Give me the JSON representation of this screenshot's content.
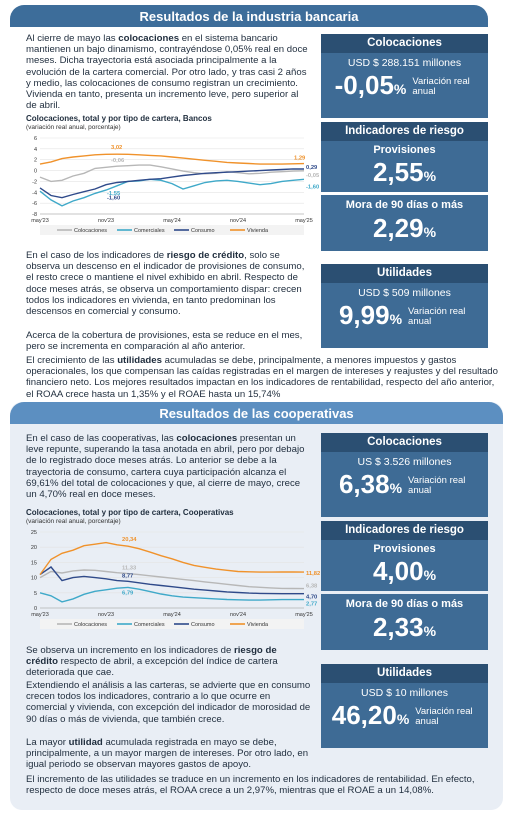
{
  "bank": {
    "header": "Resultados de la industria bancaria",
    "intro": [
      {
        "t": "Al cierre de mayo las ",
        "b": false
      },
      {
        "t": "colocaciones",
        "b": true
      },
      {
        "t": " en el sistema bancario mantienen un bajo dinamismo, contrayéndose 0,05% real en doce meses. Dicha trayectoria está asociada principalmente a la evolución de la cartera comercial. Por otro lado, y tras casi 2 años y medio, las colocaciones de consumo registran un crecimiento. Vivienda en tanto, presenta un incremento leve, pero superior al de abril.",
        "b": false
      }
    ],
    "chart_title": "Colocaciones, total y por tipo de cartera, Bancos",
    "chart_sub": "(variación real anual, porcentaje)",
    "risk_p1": [
      {
        "t": "En el caso de los indicadores de ",
        "b": false
      },
      {
        "t": "riesgo de crédito",
        "b": true
      },
      {
        "t": ", solo se observa un descenso en el indicador de provisiones de consumo, el resto crece o mantiene el nivel exhibido en abril. Respecto de doce meses atrás, se observa un comportamiento dispar: crecen todos los indicadores en vivienda, en tanto predominan los descensos en comercial y consumo.",
        "b": false
      }
    ],
    "risk_p2": "Acerca de la cobertura de provisiones, esta se reduce en el mes, pero se incrementa en comparación al año anterior.",
    "util_p": [
      {
        "t": "El crecimiento de las ",
        "b": false
      },
      {
        "t": "utilidades",
        "b": true
      },
      {
        "t": " acumuladas se debe, principalmente, a menores impuestos y gastos operacionales, los que compensan las caídas registradas en el margen de intereses y reajustes y del resultado financiero neto. Los mejores resultados impactan en los indicadores de rentabilidad, respecto del año anterior, el ROAA crece hasta un 1,35% y el ROAE hasta un 15,74%",
        "b": false
      }
    ],
    "cards": {
      "coloc": {
        "title": "Colocaciones",
        "amount": "USD $ 288.151 millones",
        "value": "-0,05",
        "unit": "%",
        "label": "Variación real anual"
      },
      "riesgo": {
        "title": "Indicadores de riesgo",
        "sub": "Provisiones",
        "value": "2,55",
        "unit": "%"
      },
      "mora": {
        "sub": "Mora de 90 días o más",
        "value": "2,29",
        "unit": "%"
      },
      "util": {
        "title": "Utilidades",
        "amount": "USD $ 509 millones",
        "value": "9,99",
        "unit": "%",
        "label": "Variación real anual"
      }
    }
  },
  "coop": {
    "header": "Resultados de las cooperativas",
    "intro": [
      {
        "t": "En el caso de las cooperativas, las ",
        "b": false
      },
      {
        "t": "colocaciones",
        "b": true
      },
      {
        "t": " presentan un leve repunte, superando la tasa anotada en abril, pero por debajo de lo registrado doce meses atrás. Lo anterior se debe a la trayectoria de consumo, cartera cuya participación alcanza el 69,61% del total de colocaciones y que, al cierre de mayo, crece un 4,70% real en doce meses.",
        "b": false
      }
    ],
    "chart_title": "Colocaciones, total y por tipo de cartera, Cooperativas",
    "chart_sub": "(variación real anual, porcentaje)",
    "risk_p1": [
      {
        "t": "Se observa un incremento en los indicadores de ",
        "b": false
      },
      {
        "t": "riesgo de crédito",
        "b": true
      },
      {
        "t": " respecto de abril, a excepción del índice de cartera deteriorada que cae.",
        "b": false
      }
    ],
    "risk_p2": "Extendiendo el análisis a las carteras, se advierte que en consumo crecen todos los indicadores, contrario a lo que ocurre en comercial y vivienda, con excepción del indicador de morosidad de 90 días o más de vivienda, que también crece.",
    "util_p": [
      {
        "t": "La mayor ",
        "b": false
      },
      {
        "t": "utilidad",
        "b": true
      },
      {
        "t": " acumulada registrada en mayo se debe, principalmente, a un mayor margen de intereses. Por otro lado, en igual periodo se observan mayores gastos de apoyo.",
        "b": false
      }
    ],
    "util_p2": "El incremento de las utilidades se traduce en un incremento en los indicadores de rentabilidad. En efecto, respecto de doce meses atrás, el ROAA crece a un 2,97%, mientras que el ROAE a un 14,08%.",
    "cards": {
      "coloc": {
        "title": "Colocaciones",
        "amount": "US $ 3.526 millones",
        "value": "6,38",
        "unit": "%",
        "label": "Variación real anual"
      },
      "riesgo": {
        "title": "Indicadores de riesgo",
        "sub": "Provisiones",
        "value": "4,00",
        "unit": "%"
      },
      "mora": {
        "sub": "Mora de 90 días o más",
        "value": "2,33",
        "unit": "%"
      },
      "util": {
        "title": "Utilidades",
        "amount": "USD $ 10 millones",
        "value": "46,20",
        "unit": "%",
        "label": "Variación real anual"
      }
    }
  },
  "colors": {
    "colocaciones": "#b7b7b7",
    "comerciales": "#3fa9c9",
    "consumo": "#2f4a8a",
    "vivienda": "#f0922b",
    "header": "#3d6d9a",
    "card": "#3e6b95"
  },
  "chart_data": [
    {
      "type": "line",
      "title": "Colocaciones, total y por tipo de cartera, Bancos",
      "ylabel": "(variación real anual, porcentaje)",
      "x_ticks": [
        "may'23",
        "nov'23",
        "may'24",
        "nov'24",
        "may'25"
      ],
      "y_ticks": [
        "-8",
        "-6",
        "-4",
        "-2",
        "0",
        "2",
        "4",
        "6"
      ],
      "ylim": [
        -8,
        6
      ],
      "legend_position": "bottom",
      "series": [
        {
          "name": "Colocaciones",
          "color": "#b7b7b7",
          "values": [
            -1.2,
            -2.0,
            -1.8,
            -1.0,
            -0.5,
            0.4,
            0.6,
            0.8,
            0.9,
            1.0,
            1.0,
            0.7,
            0.3,
            -0.1,
            -0.4,
            -0.6,
            -0.5,
            -0.2,
            -0.4,
            -0.6,
            -0.5,
            -0.3,
            -0.2,
            -0.1,
            -0.05
          ]
        },
        {
          "name": "Comerciales",
          "color": "#3fa9c9",
          "values": [
            -3.8,
            -5.4,
            -6.5,
            -5.6,
            -5.0,
            -4.2,
            -3.6,
            -2.8,
            -2.0,
            -1.9,
            -1.6,
            -1.8,
            -2.4,
            -3.4,
            -2.8,
            -2.2,
            -1.9,
            -1.8,
            -2.0,
            -2.3,
            -2.6,
            -2.4,
            -2.0,
            -1.8,
            -1.6
          ]
        },
        {
          "name": "Consumo",
          "color": "#2f4a8a",
          "values": [
            -3.2,
            -4.6,
            -5.0,
            -4.4,
            -3.9,
            -3.4,
            -2.6,
            -2.2,
            -2.0,
            -1.8,
            -1.6,
            -1.5,
            -1.2,
            -0.9,
            -0.7,
            -0.5,
            -0.4,
            -0.3,
            -0.2,
            -0.1,
            0.0,
            0.1,
            0.2,
            0.3,
            0.29
          ]
        },
        {
          "name": "Vivienda",
          "color": "#f0922b",
          "values": [
            1.2,
            1.6,
            2.2,
            2.5,
            2.7,
            2.9,
            3.0,
            3.02,
            3.0,
            2.9,
            2.8,
            2.7,
            2.5,
            2.3,
            2.1,
            1.9,
            1.7,
            1.5,
            1.4,
            1.3,
            1.2,
            1.2,
            1.2,
            1.25,
            1.29
          ]
        }
      ],
      "annotations": [
        "3,02",
        "-0,06",
        "-1,55",
        "-1,60",
        "1,29",
        "0,29",
        "-0,05",
        "-1,60"
      ]
    },
    {
      "type": "line",
      "title": "Colocaciones, total y por tipo de cartera, Cooperativas",
      "ylabel": "(variación real anual, porcentaje)",
      "x_ticks": [
        "may'23",
        "nov'23",
        "may'24",
        "nov'24",
        "may'25"
      ],
      "y_ticks": [
        "0",
        "5",
        "10",
        "15",
        "20",
        "25"
      ],
      "ylim": [
        0,
        25
      ],
      "legend_position": "bottom",
      "series": [
        {
          "name": "Colocaciones",
          "color": "#b7b7b7",
          "values": [
            10.0,
            12.0,
            11.5,
            12.2,
            12.5,
            12.4,
            12.0,
            11.6,
            11.33,
            11.0,
            10.6,
            10.2,
            9.8,
            9.4,
            9.0,
            8.6,
            8.2,
            7.8,
            7.4,
            7.0,
            6.8,
            6.6,
            6.45,
            6.4,
            6.38
          ]
        },
        {
          "name": "Comerciales",
          "color": "#3fa9c9",
          "values": [
            5.0,
            4.0,
            2.0,
            3.0,
            4.5,
            5.5,
            6.0,
            6.5,
            6.79,
            6.2,
            5.4,
            4.6,
            4.0,
            3.6,
            3.4,
            3.2,
            3.0,
            2.8,
            2.7,
            2.6,
            2.6,
            2.7,
            2.75,
            2.76,
            2.77
          ]
        },
        {
          "name": "Consumo",
          "color": "#2f4a8a",
          "values": [
            11.0,
            13.5,
            9.0,
            10.0,
            10.4,
            10.0,
            9.6,
            9.0,
            8.77,
            8.3,
            7.8,
            7.4,
            7.0,
            6.6,
            6.2,
            5.9,
            5.6,
            5.3,
            5.1,
            4.9,
            4.8,
            4.75,
            4.72,
            4.7,
            4.7
          ]
        },
        {
          "name": "Vivienda",
          "color": "#f0922b",
          "values": [
            11.0,
            16.0,
            18.0,
            19.0,
            20.5,
            21.0,
            21.5,
            20.8,
            20.34,
            19.5,
            18.4,
            17.2,
            16.2,
            15.0,
            14.0,
            13.4,
            12.8,
            12.4,
            12.0,
            11.9,
            11.8,
            11.82,
            11.85,
            11.83,
            11.82
          ]
        }
      ],
      "annotations": [
        "20,34",
        "11,33",
        "8,77",
        "6,79",
        "11,82",
        "6,38",
        "4,70",
        "2,77"
      ]
    }
  ]
}
